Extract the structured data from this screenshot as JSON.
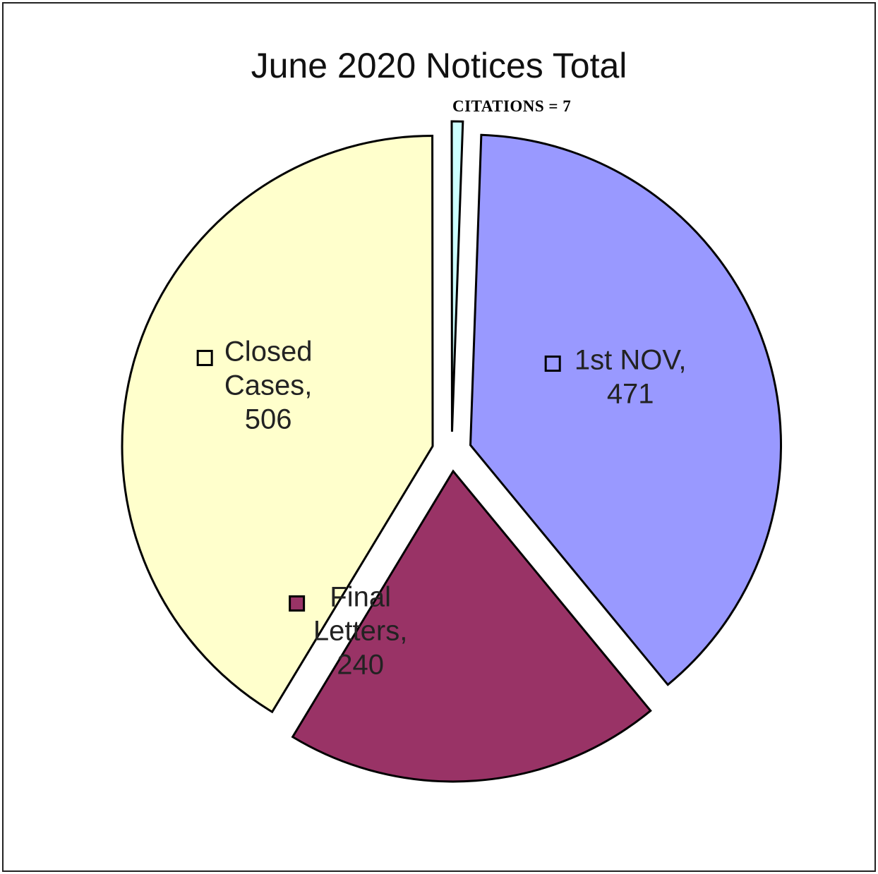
{
  "chart_data": {
    "type": "pie",
    "title": "June 2020 Notices Total",
    "annotation": "CITATIONS = 7",
    "slices": [
      {
        "label_lines": [
          "1st NOV,",
          "471"
        ],
        "name": "1st NOV",
        "value": 471,
        "color": "#9999ff"
      },
      {
        "label_lines": [
          "Final",
          "Letters,",
          "240"
        ],
        "name": "Final Letters",
        "value": 240,
        "color": "#993366"
      },
      {
        "label_lines": [
          "Closed",
          "Cases,",
          "506"
        ],
        "name": "Closed Cases",
        "value": 506,
        "color": "#ffffcc"
      },
      {
        "label_lines": [],
        "name": "Citations",
        "value": 7,
        "color": "#ccffff"
      }
    ],
    "legend": "none",
    "label_style": "inside-with-swatch"
  }
}
